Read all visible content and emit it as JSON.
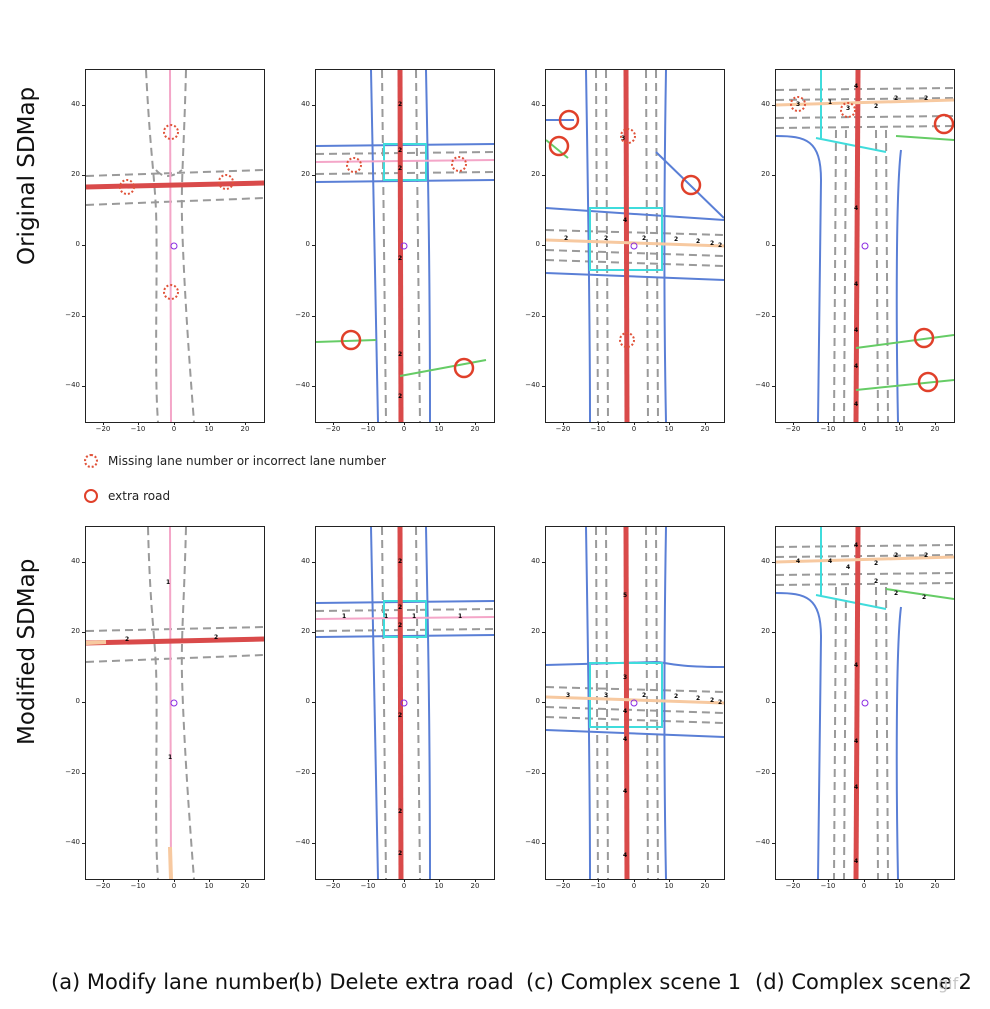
{
  "row_labels": [
    "Original SDMap",
    "Modified SDMap"
  ],
  "y_ticks": [
    "40",
    "20",
    "0",
    "−20",
    "−40"
  ],
  "x_ticks": [
    "−20",
    "−10",
    "0",
    "10",
    "20"
  ],
  "legend": {
    "missing": "Missing lane number or incorrect lane number",
    "extra": "extra road"
  },
  "colors": {
    "missing_marker": "#e0533a",
    "extra_marker": "#e0402a",
    "centerline": "#d94a4a",
    "pink_road": "#f4a6c8",
    "blue_boundary": "#5a7fd6",
    "cyan_crossing": "#3fdcdc",
    "green_road": "#66cc66",
    "dashed_lane": "#9a9a9a",
    "peach_arrow": "#f7c9a0",
    "origin_marker": "#8a2be2"
  },
  "lane_labels": {
    "a_top": [],
    "b_top": [
      "2",
      "2",
      "2",
      "2",
      "2",
      "2"
    ],
    "c_top": [
      "3",
      "4",
      "2",
      "2",
      "2",
      "2",
      "2",
      "2",
      "2"
    ],
    "d_top": [
      "3",
      "1",
      "3",
      "2",
      "2",
      "2",
      "4",
      "4",
      "4",
      "4",
      "4",
      "4"
    ],
    "a_bot": [
      "1",
      "2",
      "2",
      "1"
    ],
    "b_bot": [
      "2",
      "2",
      "1",
      "1",
      "1",
      "1",
      "2",
      "2",
      "2",
      "2"
    ],
    "c_bot": [
      "5",
      "3",
      "3",
      "2",
      "3",
      "2",
      "2",
      "2",
      "2",
      "4",
      "4",
      "4",
      "4"
    ],
    "d_bot": [
      "4",
      "4",
      "4",
      "2",
      "2",
      "2",
      "2",
      "2",
      "2",
      "4",
      "4",
      "4",
      "4",
      "4"
    ]
  },
  "captions": [
    "(a) Modify lane number",
    "(b) Delete extra road",
    "(c) Complex scene 1",
    "(d) Complex scene 2"
  ],
  "watermark": "gif"
}
